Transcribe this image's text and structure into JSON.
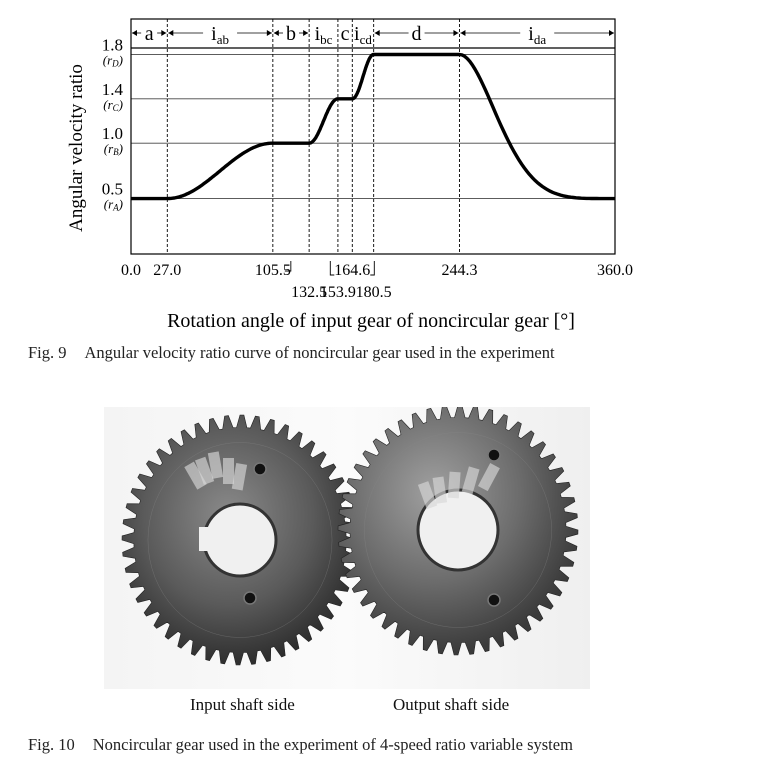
{
  "figure9": {
    "chart_data": {
      "type": "line",
      "xlabel": "Rotation angle of input gear of noncircular gear [°]",
      "ylabel": "Angular velocity ratio",
      "xlim": [
        0,
        360
      ],
      "ylim": [
        0,
        2.12
      ],
      "x_ticks": [
        {
          "value": 0.0,
          "label": "0.0",
          "row": 1
        },
        {
          "value": 27.0,
          "label": "27.0",
          "row": 1
        },
        {
          "value": 105.5,
          "label": "105.5",
          "row": 1
        },
        {
          "value": 132.5,
          "label": "132.5",
          "row": 2
        },
        {
          "value": 153.9,
          "label": "153.9",
          "row": 2
        },
        {
          "value": 164.6,
          "label": "164.6",
          "row": 1
        },
        {
          "value": 180.5,
          "label": "180.5",
          "row": 2
        },
        {
          "value": 244.3,
          "label": "244.3",
          "row": 1
        },
        {
          "value": 360.0,
          "label": "360.0",
          "row": 1
        }
      ],
      "y_ticks": [
        {
          "value": 0.5,
          "label": "0.5",
          "sub": "r",
          "sub_idx": "A"
        },
        {
          "value": 1.0,
          "label": "1.0",
          "sub": "r",
          "sub_idx": "B"
        },
        {
          "value": 1.4,
          "label": "1.4",
          "sub": "r",
          "sub_idx": "C"
        },
        {
          "value": 1.8,
          "label": "1.8",
          "sub": "r",
          "sub_idx": "D"
        }
      ],
      "grid": true,
      "intervals": [
        {
          "base": "a",
          "sub": "",
          "from": 0.0,
          "to": 27.0
        },
        {
          "base": "i",
          "sub": "ab",
          "from": 27.0,
          "to": 105.5
        },
        {
          "base": "b",
          "sub": "",
          "from": 105.5,
          "to": 132.5
        },
        {
          "base": "i",
          "sub": "bc",
          "from": 132.5,
          "to": 153.9
        },
        {
          "base": "c",
          "sub": "",
          "from": 153.9,
          "to": 164.6
        },
        {
          "base": "i",
          "sub": "cd",
          "from": 164.6,
          "to": 180.5
        },
        {
          "base": "d",
          "sub": "",
          "from": 180.5,
          "to": 244.3
        },
        {
          "base": "i",
          "sub": "da",
          "from": 244.3,
          "to": 360.0
        }
      ],
      "segments": [
        {
          "kind": "flat",
          "from": 0.0,
          "to": 27.0,
          "y": 0.5
        },
        {
          "kind": "transition",
          "from": 27.0,
          "to": 105.5,
          "y0": 0.5,
          "y1": 1.0
        },
        {
          "kind": "flat",
          "from": 105.5,
          "to": 132.5,
          "y": 1.0
        },
        {
          "kind": "transition",
          "from": 132.5,
          "to": 153.9,
          "y0": 1.0,
          "y1": 1.4
        },
        {
          "kind": "flat",
          "from": 153.9,
          "to": 164.6,
          "y": 1.4
        },
        {
          "kind": "transition",
          "from": 164.6,
          "to": 180.5,
          "y0": 1.4,
          "y1": 1.8
        },
        {
          "kind": "flat",
          "from": 180.5,
          "to": 244.3,
          "y": 1.8
        },
        {
          "kind": "transition",
          "from": 244.3,
          "to": 360.0,
          "y0": 1.8,
          "y1": 0.5
        }
      ]
    },
    "caption_num": "Fig. 9",
    "caption_text": "Angular velocity ratio curve of noncircular gear used in the experiment"
  },
  "figure10": {
    "caption_num": "Fig. 10",
    "caption_text": "Noncircular gear used in the experiment of 4-speed ratio variable system",
    "input_label": "Input shaft side",
    "output_label": "Output shaft side"
  },
  "colors": {
    "curve": "#000000",
    "grid": "#555555",
    "gear_dark": "#3a3a3a",
    "gear_mid": "#6e6e6e",
    "gear_light": "#9a9a9a",
    "photo_bg": "#f5f5f5"
  }
}
